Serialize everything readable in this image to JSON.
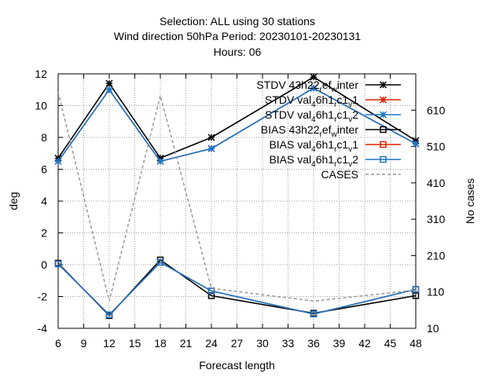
{
  "chart_data": {
    "type": "line",
    "title_lines": [
      "Selection: ALL using    30 stations",
      "Wind direction 50hPa   Period: 20230101-20230131",
      "Hours:  06"
    ],
    "xlabel": "Forecast length",
    "ylabel": "deg",
    "y2label": "No cases",
    "xlim": [
      6,
      48
    ],
    "ylim": [
      -4,
      12
    ],
    "y2lim": [
      10,
      710
    ],
    "xticks": [
      "6",
      "9",
      "12",
      "15",
      "18",
      "21",
      "24",
      "27",
      "30",
      "33",
      "36",
      "39",
      "42",
      "45",
      "48"
    ],
    "yticks": [
      "-4",
      "-2",
      "0",
      "2",
      "4",
      "6",
      "8",
      "10",
      "12"
    ],
    "y2ticks": [
      "10",
      "110",
      "210",
      "310",
      "410",
      "510",
      "610"
    ],
    "grid": true,
    "legend_placement": "top-right",
    "x": [
      6,
      12,
      18,
      24,
      36,
      48
    ],
    "series": [
      {
        "name_parts": {
          "pre": "STDV 43h22",
          "sub1": "r",
          "mid1": "ef",
          "sub2": "w",
          "post": "inter"
        },
        "color": "#000000",
        "marker": "x",
        "axis": "left",
        "values": [
          6.7,
          11.4,
          6.7,
          8.0,
          11.8,
          7.8
        ]
      },
      {
        "name_parts": {
          "pre": "STDV val",
          "sub1": "4",
          "mid1": "6h1",
          "sub2": "r",
          "mid2": "c1",
          "sub3": "v",
          "post": "1"
        },
        "color": "#dd2200",
        "marker": "x",
        "axis": "left",
        "values": [
          6.5,
          11.0,
          6.5,
          7.3,
          11.1,
          7.6
        ]
      },
      {
        "name_parts": {
          "pre": "STDV val",
          "sub1": "4",
          "mid1": "6h1",
          "sub2": "r",
          "mid2": "c1",
          "sub3": "v",
          "post": "2"
        },
        "color": "#1a77c9",
        "marker": "x",
        "axis": "left",
        "values": [
          6.5,
          11.0,
          6.5,
          7.3,
          11.1,
          7.6
        ]
      },
      {
        "name_parts": {
          "pre": "BIAS 43h22",
          "sub1": "r",
          "mid1": "ef",
          "sub2": "w",
          "post": "inter"
        },
        "color": "#000000",
        "marker": "square",
        "axis": "left",
        "values": [
          0.1,
          -3.2,
          0.3,
          -1.95,
          -3.05,
          -1.95
        ]
      },
      {
        "name_parts": {
          "pre": "BIAS val",
          "sub1": "4",
          "mid1": "6h1",
          "sub2": "r",
          "mid2": "c1",
          "sub3": "v",
          "post": "1"
        },
        "color": "#dd2200",
        "marker": "square",
        "axis": "left",
        "values": [
          0.05,
          -3.15,
          0.15,
          -1.65,
          -3.1,
          -1.55
        ]
      },
      {
        "name_parts": {
          "pre": "BIAS val",
          "sub1": "4",
          "mid1": "6h1",
          "sub2": "r",
          "mid2": "c1",
          "sub3": "v",
          "post": "2"
        },
        "color": "#1a77c9",
        "marker": "square",
        "axis": "left",
        "values": [
          0.05,
          -3.15,
          0.15,
          -1.65,
          -3.1,
          -1.55
        ]
      },
      {
        "name": "CASES",
        "color": "#999999",
        "marker": "none",
        "dashed": true,
        "axis": "right",
        "values": [
          660,
          85,
          650,
          120,
          85,
          115
        ]
      }
    ]
  }
}
